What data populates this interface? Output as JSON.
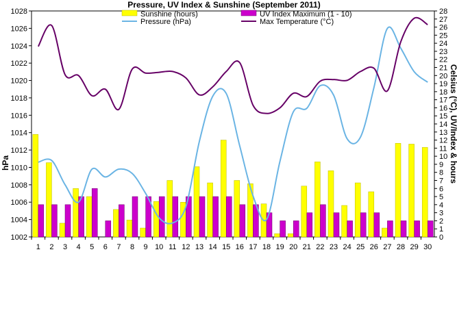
{
  "chart_data": {
    "type": "bar",
    "title": "Pressure, UV Index & Sunshine (September 2011)",
    "ylabel_left": "hPa",
    "ylabel_right": "Celsius (°C), UV/Index & hours",
    "ylim_left": [
      1002,
      1028
    ],
    "ylim_right": [
      0,
      28
    ],
    "yticks_left": [
      "1002",
      "1004",
      "1006",
      "1008",
      "1010",
      "1012",
      "1014",
      "1016",
      "1018",
      "1020",
      "1022",
      "1024",
      "1026",
      "1028"
    ],
    "yticks_right": [
      "0",
      "1",
      "2",
      "3",
      "4",
      "5",
      "6",
      "7",
      "8",
      "9",
      "10",
      "11",
      "12",
      "13",
      "14",
      "15",
      "16",
      "17",
      "18",
      "19",
      "20",
      "21",
      "22",
      "23",
      "24",
      "25",
      "26",
      "27",
      "28"
    ],
    "categories": [
      "1",
      "2",
      "3",
      "4",
      "5",
      "6",
      "7",
      "8",
      "9",
      "10",
      "11",
      "12",
      "13",
      "14",
      "15",
      "16",
      "17",
      "18",
      "19",
      "20",
      "21",
      "22",
      "23",
      "24",
      "25",
      "26",
      "27",
      "28",
      "29",
      "30"
    ],
    "legend": [
      {
        "label": "Sunshine (hours)",
        "kind": "bar",
        "color": "#ffff00",
        "stroke": "#b8b800"
      },
      {
        "label": "UV Index Maximum (1 - 10)",
        "kind": "bar",
        "color": "#cc00cc",
        "stroke": "#660066"
      },
      {
        "label": "Pressure (hPa)",
        "kind": "line",
        "color": "#6ab4e4"
      },
      {
        "label": "Max Temperature (°C)",
        "kind": "line",
        "color": "#660066"
      }
    ],
    "series": [
      {
        "name": "Sunshine (hours)",
        "axis": "right",
        "type": "bar",
        "values": [
          12.7,
          9.2,
          1.7,
          6.0,
          5.0,
          0,
          3.4,
          2.1,
          1.1,
          4.4,
          7.0,
          4.3,
          8.7,
          6.7,
          12.0,
          7.0,
          6.6,
          4.1,
          0.4,
          0.4,
          6.3,
          9.3,
          8.2,
          3.9,
          6.7,
          5.6,
          1.1,
          11.6,
          11.5,
          11.1
        ],
        "color": "#ffff00"
      },
      {
        "name": "UV Index Maximum (1 - 10)",
        "axis": "right",
        "type": "bar",
        "values": [
          4,
          4,
          4,
          5,
          6,
          2,
          4,
          5,
          5,
          5,
          5,
          5,
          5,
          5,
          5,
          4,
          4,
          3,
          2,
          2,
          3,
          4,
          3,
          2,
          3,
          3,
          2,
          2,
          2,
          2
        ],
        "color": "#cc00cc"
      },
      {
        "name": "Pressure (hPa)",
        "axis": "left",
        "type": "line",
        "values": [
          1010.6,
          1010.8,
          1008.0,
          1006.0,
          1009.8,
          1008.9,
          1009.8,
          1009.3,
          1007.0,
          1004.2,
          1003.6,
          1005.5,
          1013.0,
          1018.2,
          1018.5,
          1012.5,
          1006.7,
          1004.0,
          1010.7,
          1016.4,
          1016.8,
          1019.4,
          1018.3,
          1013.3,
          1013.5,
          1019.2,
          1026.0,
          1023.7,
          1021.0,
          1019.8
        ],
        "color": "#6ab4e4"
      },
      {
        "name": "Max Temperature (°C)",
        "axis": "right",
        "type": "line",
        "values": [
          23.6,
          26.2,
          20.1,
          20.0,
          17.5,
          18.3,
          15.8,
          20.8,
          20.3,
          20.4,
          20.5,
          19.7,
          17.6,
          18.6,
          20.5,
          21.6,
          16.3,
          15.3,
          16.0,
          17.8,
          17.4,
          19.3,
          19.5,
          19.4,
          20.5,
          20.9,
          18.1,
          24.2,
          27.1,
          26.3
        ],
        "color": "#660066"
      }
    ],
    "grid": false,
    "legend_position": "top-center"
  }
}
